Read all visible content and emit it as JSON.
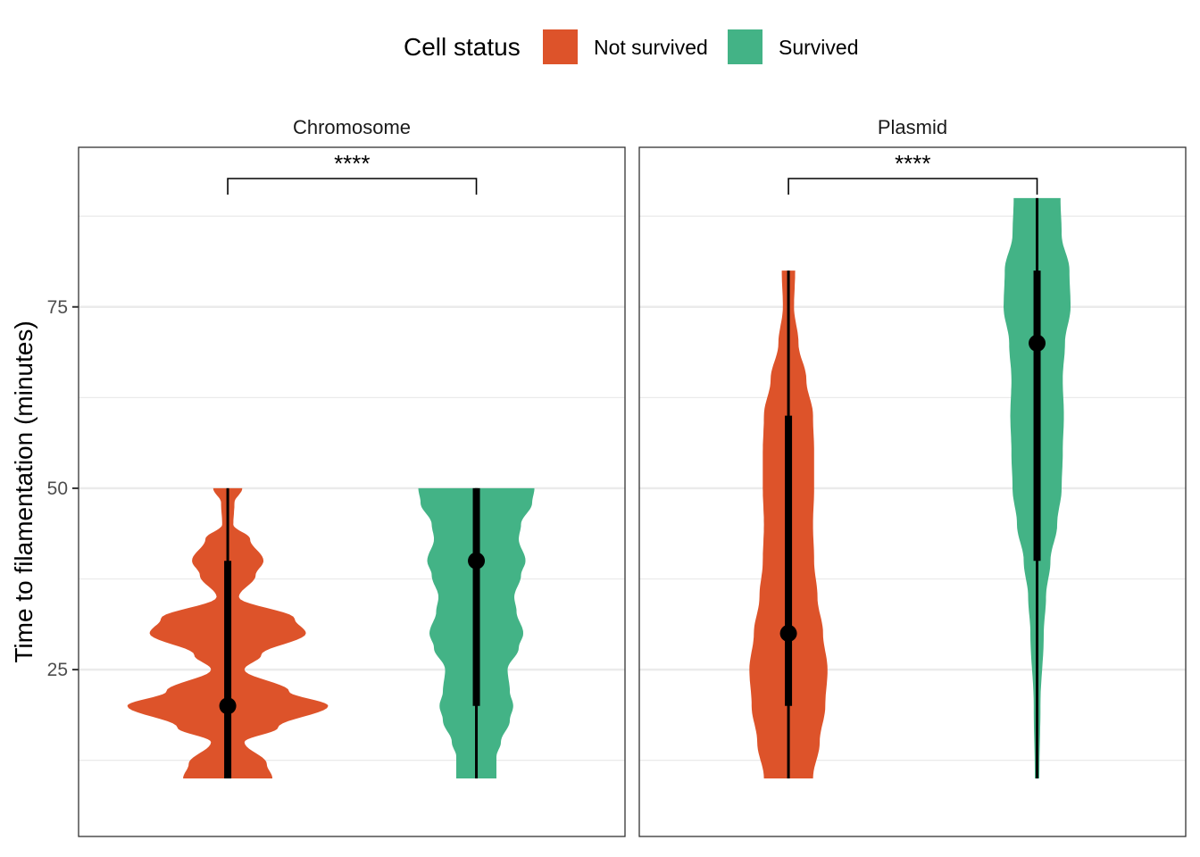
{
  "chart_data": {
    "type": "violin",
    "ylabel": "Time to filamentation (minutes)",
    "xlabel": "",
    "ylim": [
      2,
      97
    ],
    "y_ticks": [
      25,
      50,
      75
    ],
    "grid": true,
    "legend": {
      "title": "Cell status",
      "position": "top",
      "entries": [
        {
          "name": "Not survived",
          "color": "#DD532A"
        },
        {
          "name": "Survived",
          "color": "#43B386"
        }
      ]
    },
    "panels": [
      {
        "name": "Chromosome",
        "significance": "****",
        "groups": [
          {
            "status": "Not survived",
            "color": "#DD532A",
            "range": [
              10,
              50
            ],
            "median": 20,
            "q1": 10,
            "q3": 40,
            "density_profile": [
              [
                10,
                0.4
              ],
              [
                12,
                0.35
              ],
              [
                15,
                0.15
              ],
              [
                17,
                0.45
              ],
              [
                20,
                0.9
              ],
              [
                22,
                0.55
              ],
              [
                25,
                0.15
              ],
              [
                27,
                0.3
              ],
              [
                30,
                0.7
              ],
              [
                32,
                0.6
              ],
              [
                35,
                0.1
              ],
              [
                38,
                0.25
              ],
              [
                40,
                0.32
              ],
              [
                43,
                0.2
              ],
              [
                45,
                0.05
              ],
              [
                48,
                0.06
              ],
              [
                50,
                0.13
              ]
            ]
          },
          {
            "status": "Survived",
            "color": "#43B386",
            "range": [
              10,
              50
            ],
            "median": 40,
            "q1": 20,
            "q3": 50,
            "density_profile": [
              [
                10,
                0.18
              ],
              [
                13,
                0.18
              ],
              [
                15,
                0.22
              ],
              [
                18,
                0.3
              ],
              [
                20,
                0.33
              ],
              [
                22,
                0.3
              ],
              [
                25,
                0.28
              ],
              [
                28,
                0.38
              ],
              [
                30,
                0.42
              ],
              [
                33,
                0.36
              ],
              [
                35,
                0.34
              ],
              [
                38,
                0.4
              ],
              [
                40,
                0.44
              ],
              [
                43,
                0.38
              ],
              [
                45,
                0.4
              ],
              [
                48,
                0.5
              ],
              [
                50,
                0.52
              ]
            ]
          }
        ]
      },
      {
        "name": "Plasmid",
        "significance": "****",
        "groups": [
          {
            "status": "Not survived",
            "color": "#DD532A",
            "range": [
              10,
              80
            ],
            "median": 30,
            "q1": 20,
            "q3": 60,
            "density_profile": [
              [
                10,
                0.22
              ],
              [
                15,
                0.28
              ],
              [
                20,
                0.33
              ],
              [
                25,
                0.35
              ],
              [
                30,
                0.31
              ],
              [
                35,
                0.26
              ],
              [
                40,
                0.23
              ],
              [
                45,
                0.22
              ],
              [
                50,
                0.23
              ],
              [
                55,
                0.23
              ],
              [
                60,
                0.22
              ],
              [
                65,
                0.16
              ],
              [
                70,
                0.09
              ],
              [
                75,
                0.05
              ],
              [
                80,
                0.06
              ]
            ]
          },
          {
            "status": "Survived",
            "color": "#43B386",
            "range": [
              10,
              90
            ],
            "median": 70,
            "q1": 40,
            "q3": 80,
            "density_profile": [
              [
                10,
                0.02
              ],
              [
                20,
                0.03
              ],
              [
                30,
                0.06
              ],
              [
                35,
                0.08
              ],
              [
                40,
                0.12
              ],
              [
                45,
                0.18
              ],
              [
                50,
                0.22
              ],
              [
                55,
                0.23
              ],
              [
                60,
                0.24
              ],
              [
                65,
                0.23
              ],
              [
                70,
                0.25
              ],
              [
                75,
                0.3
              ],
              [
                80,
                0.29
              ],
              [
                85,
                0.22
              ],
              [
                90,
                0.21
              ]
            ]
          }
        ]
      }
    ]
  }
}
